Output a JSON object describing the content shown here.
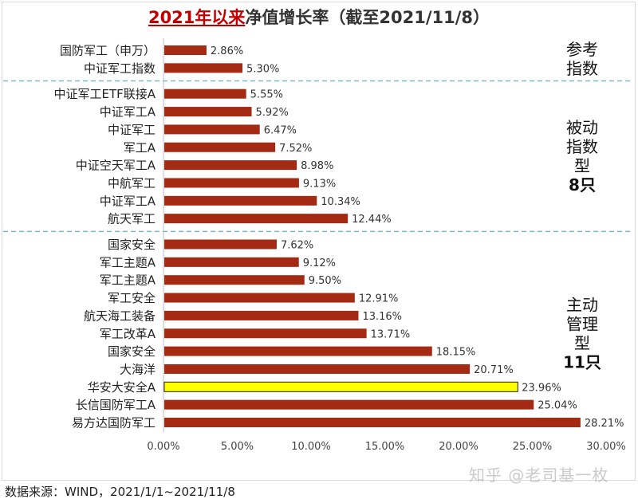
{
  "chart_data": {
    "type": "bar",
    "orientation": "horizontal",
    "title_highlight": "2021年以来",
    "title_rest": "净值增长率（截至2021/11/8）",
    "categories": [
      "国防军工（申万）",
      "中证军工指数",
      "中证军工ETF联接A",
      "中证军工A",
      "中证军工",
      "军工A",
      "中证空天军工A",
      "中航军工",
      "中证军工A",
      "航天军工",
      "国家安全",
      "军工主题A",
      "军工主题A",
      "军工安全",
      "航天海工装备",
      "军工改革A",
      "国家安全",
      "大海洋",
      "华安大安全A",
      "长信国防军工A",
      "易方达国防军工"
    ],
    "values": [
      2.86,
      5.3,
      5.55,
      5.92,
      6.47,
      7.52,
      8.98,
      9.13,
      10.34,
      12.44,
      7.62,
      9.12,
      9.5,
      12.91,
      13.16,
      13.71,
      18.15,
      20.71,
      23.96,
      25.04,
      28.21
    ],
    "value_labels": [
      "2.86%",
      "5.30%",
      "5.55%",
      "5.92%",
      "6.47%",
      "7.52%",
      "8.98%",
      "9.13%",
      "10.34%",
      "12.44%",
      "7.62%",
      "9.12%",
      "9.50%",
      "12.91%",
      "13.16%",
      "13.71%",
      "18.15%",
      "20.71%",
      "23.96%",
      "25.04%",
      "28.21%"
    ],
    "highlighted": [
      false,
      false,
      false,
      false,
      false,
      false,
      false,
      false,
      false,
      false,
      false,
      false,
      false,
      false,
      false,
      false,
      false,
      false,
      true,
      false,
      false
    ],
    "x_ticks": [
      0,
      5,
      10,
      15,
      20,
      25,
      30
    ],
    "x_tick_labels": [
      "0.00%",
      "5.00%",
      "10.00%",
      "15.00%",
      "20.00%",
      "25.00%",
      "30.00%"
    ],
    "xlim": [
      0,
      30
    ],
    "groups": [
      {
        "label_lines": [
          "参考",
          "指数"
        ],
        "start": 0,
        "end": 1
      },
      {
        "label_lines": [
          "被动",
          "指数",
          "型",
          "8只"
        ],
        "start": 2,
        "end": 9
      },
      {
        "label_lines": [
          "主动",
          "管理",
          "型",
          "11只"
        ],
        "start": 10,
        "end": 20
      }
    ],
    "colors": {
      "bar": "#a52a14",
      "highlight_bar": "#ffff00",
      "highlight_border": "#222222",
      "divider": "#7ab8c9"
    }
  },
  "source_note": "数据来源：WIND，2021/1/1~2021/11/8",
  "watermark": "知乎 @老司基一枚"
}
